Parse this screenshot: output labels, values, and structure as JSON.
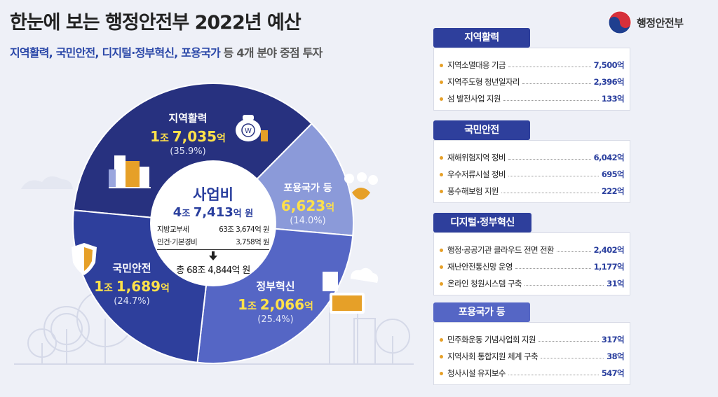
{
  "header": {
    "title": "한눈에 보는 행정안전부 2022년 예산",
    "subtitle_highlight": "지역활력, 국민안전, 디지털·정부혁신, 포용국가",
    "subtitle_rest": " 등 4개 분야 중점 투자",
    "logo_text": "행정안전부"
  },
  "colors": {
    "regional": "#27317f",
    "safety": "#2e3f9c",
    "digital": "#5566c5",
    "inclusive": "#8b9ad9",
    "accent": "#ffe14a",
    "center": "#ffffff"
  },
  "center": {
    "title": "사업비",
    "amount_num1": "4",
    "amount_unit1": "조 ",
    "amount_num2": "7,413",
    "amount_unit2": "억 원",
    "line1_label": "지방교부세",
    "line1_value": "63조 3,674억 원",
    "line2_label": "인건·기본경비",
    "line2_value": "3,758억 원",
    "total": "총 68조 4,844억 원"
  },
  "chart_data": {
    "type": "pie",
    "title": "사업비",
    "slices": [
      {
        "name": "지역활력",
        "value_label_big": "1",
        "unit1": "조 ",
        "value_label_num": "7,035",
        "unit2": "억",
        "pct_label": "(35.9%)",
        "value": 17035,
        "percent": 35.9
      },
      {
        "name": "포용국가 등",
        "value_label_big": "",
        "unit1": "",
        "value_label_num": "6,623",
        "unit2": "억",
        "pct_label": "(14.0%)",
        "value": 6623,
        "percent": 14.0
      },
      {
        "name": "정부혁신",
        "value_label_big": "1",
        "unit1": "조 ",
        "value_label_num": "2,066",
        "unit2": "억",
        "pct_label": "(25.4%)",
        "value": 12066,
        "percent": 25.4
      },
      {
        "name": "국민안전",
        "value_label_big": "1",
        "unit1": "조 ",
        "value_label_num": "1,689",
        "unit2": "억",
        "pct_label": "(24.7%)",
        "value": 11689,
        "percent": 24.7
      }
    ]
  },
  "panels": [
    {
      "title": "지역활력",
      "items": [
        {
          "label": "지역소멸대응 기금",
          "value": "7,500억"
        },
        {
          "label": "지역주도형 청년일자리",
          "value": "2,396억"
        },
        {
          "label": "섬 발전사업 지원",
          "value": "133억"
        }
      ]
    },
    {
      "title": "국민안전",
      "items": [
        {
          "label": "재해위험지역 정비",
          "value": "6,042억"
        },
        {
          "label": "우수저류시설 정비",
          "value": "695억"
        },
        {
          "label": "풍수해보험 지원",
          "value": "222억"
        }
      ]
    },
    {
      "title": "디지털·정부혁신",
      "items": [
        {
          "label": "행정·공공기관 클라우드 전면 전환",
          "value": "2,402억"
        },
        {
          "label": "재난안전통신망 운영",
          "value": "1,177억"
        },
        {
          "label": "온라인 청원시스템 구축",
          "value": "31억"
        }
      ]
    },
    {
      "title": "포용국가 등",
      "items": [
        {
          "label": "민주화운동 기념사업회 지원",
          "value": "317억"
        },
        {
          "label": "지역사회 통합지원 체계 구축",
          "value": "38억"
        },
        {
          "label": "청사시설 유지보수",
          "value": "547억"
        }
      ]
    }
  ]
}
